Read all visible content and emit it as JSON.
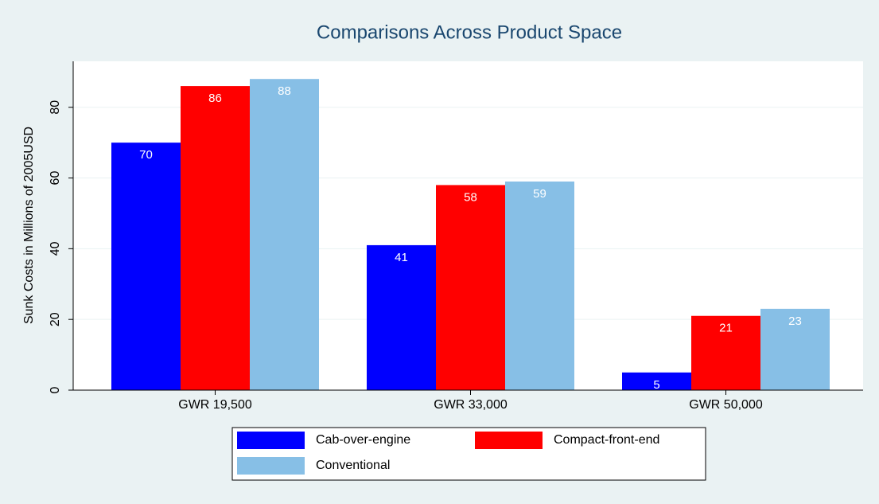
{
  "chart_data": {
    "type": "bar",
    "title": "Comparisons Across Product Space",
    "y_label": "Sunk Costs in Millions of 2005USD",
    "categories": [
      "GWR 19,500",
      "GWR 33,000",
      "GWR 50,000"
    ],
    "series": [
      {
        "name": "Cab-over-engine",
        "color": "#0000ff",
        "values": [
          70,
          41,
          5
        ]
      },
      {
        "name": "Compact-front-end",
        "color": "#ff0000",
        "values": [
          86,
          58,
          21
        ]
      },
      {
        "name": "Conventional",
        "color": "#87bfe6",
        "values": [
          88,
          59,
          23
        ]
      }
    ],
    "ylim": [
      0,
      93
    ],
    "yticks": [
      0,
      20,
      40,
      60,
      80
    ],
    "grid": true
  }
}
